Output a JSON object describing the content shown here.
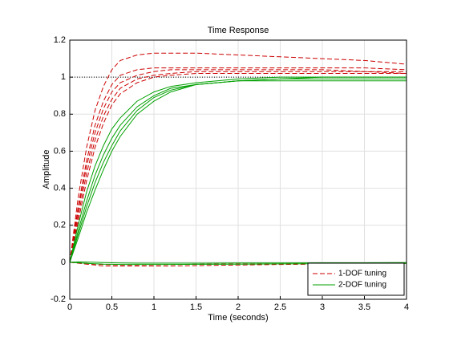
{
  "chart_data": {
    "type": "line",
    "title": "Time Response",
    "x_label": "Time (seconds)",
    "y_label": "Amplitude",
    "x": [
      0,
      0.1,
      0.2,
      0.3,
      0.4,
      0.5,
      0.6,
      0.8,
      1.0,
      1.2,
      1.5,
      2,
      2.5,
      3,
      3.5,
      4
    ],
    "xlim": [
      0,
      4
    ],
    "xticks": [
      0,
      0.5,
      1,
      1.5,
      2,
      2.5,
      3,
      3.5,
      4
    ],
    "ylim": [
      -0.2,
      1.2
    ],
    "yticks": [
      -0.2,
      0,
      0.2,
      0.4,
      0.6,
      0.8,
      1,
      1.2
    ],
    "grid": true,
    "reference_line": 1,
    "legend": "lower-right",
    "series": [
      {
        "name": "1-DOF tuning",
        "color": "#cc0000",
        "dashed": true,
        "curves": [
          [
            0,
            0.35,
            0.62,
            0.82,
            0.95,
            1.04,
            1.09,
            1.12,
            1.13,
            1.13,
            1.13,
            1.12,
            1.11,
            1.1,
            1.09,
            1.07
          ],
          [
            0,
            0.3,
            0.55,
            0.74,
            0.87,
            0.96,
            1.01,
            1.04,
            1.05,
            1.05,
            1.05,
            1.05,
            1.05,
            1.05,
            1.05,
            1.04
          ],
          [
            0,
            0.28,
            0.52,
            0.7,
            0.83,
            0.92,
            0.97,
            1.01,
            1.03,
            1.04,
            1.04,
            1.04,
            1.04,
            1.04,
            1.03,
            1.03
          ],
          [
            0,
            0.25,
            0.48,
            0.66,
            0.79,
            0.88,
            0.94,
            0.99,
            1.01,
            1.02,
            1.03,
            1.03,
            1.03,
            1.03,
            1.03,
            1.02
          ],
          [
            0,
            0.22,
            0.44,
            0.62,
            0.75,
            0.85,
            0.91,
            0.97,
            1,
            1.01,
            1.02,
            1.02,
            1.02,
            1.02,
            1.02,
            1.02
          ],
          [
            0,
            -0.005,
            -0.01,
            -0.015,
            -0.02,
            -0.02,
            -0.02,
            -0.02,
            -0.02,
            -0.02,
            -0.018,
            -0.015,
            -0.012,
            -0.01,
            -0.008,
            -0.006
          ],
          [
            0,
            -0.003,
            -0.006,
            -0.01,
            -0.012,
            -0.013,
            -0.014,
            -0.014,
            -0.013,
            -0.012,
            -0.011,
            -0.009,
            -0.008,
            -0.006,
            -0.005,
            -0.004
          ]
        ]
      },
      {
        "name": "2-DOF tuning",
        "color": "#00a000",
        "dashed": false,
        "curves": [
          [
            0,
            0.2,
            0.38,
            0.52,
            0.63,
            0.72,
            0.78,
            0.87,
            0.92,
            0.95,
            0.97,
            0.99,
            1,
            1,
            1,
            1
          ],
          [
            0,
            0.17,
            0.33,
            0.47,
            0.58,
            0.67,
            0.74,
            0.84,
            0.9,
            0.94,
            0.96,
            0.98,
            0.99,
            1,
            1,
            1
          ],
          [
            0,
            0.15,
            0.3,
            0.43,
            0.54,
            0.63,
            0.71,
            0.82,
            0.89,
            0.93,
            0.96,
            0.98,
            0.99,
            0.99,
            0.99,
            0.99
          ],
          [
            0,
            0.13,
            0.27,
            0.39,
            0.5,
            0.6,
            0.68,
            0.8,
            0.87,
            0.92,
            0.96,
            0.98,
            0.98,
            0.98,
            0.98,
            0.98
          ],
          [
            0,
            -0.003,
            -0.006,
            -0.008,
            -0.01,
            -0.011,
            -0.012,
            -0.012,
            -0.012,
            -0.012,
            -0.011,
            -0.01,
            -0.009,
            -0.008,
            -0.007,
            -0.006
          ],
          [
            0,
            0.002,
            0.001,
            0,
            -0.002,
            -0.003,
            -0.004,
            -0.005,
            -0.005,
            -0.005,
            -0.005,
            -0.004,
            -0.004,
            -0.003,
            -0.003,
            -0.002
          ]
        ]
      }
    ]
  }
}
